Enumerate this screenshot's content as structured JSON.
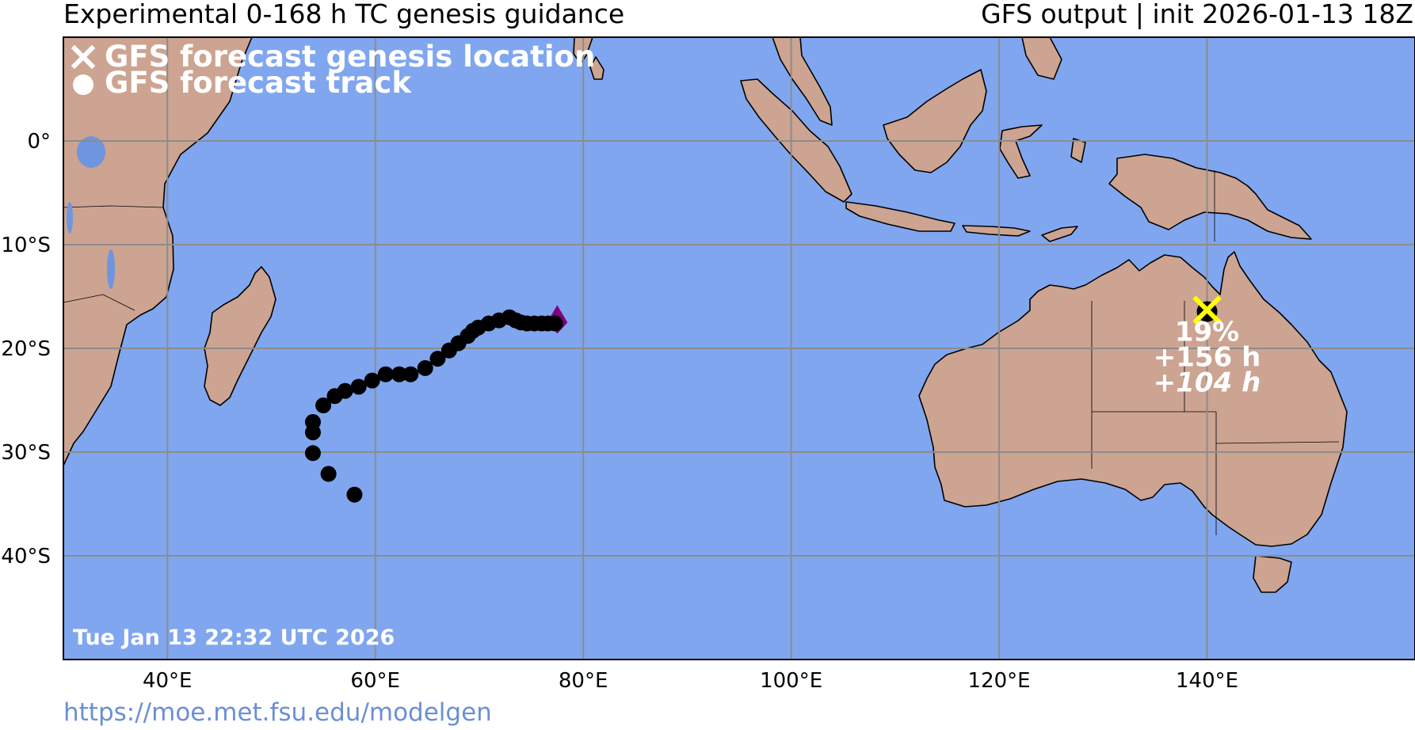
{
  "header": {
    "title_left": "Experimental 0-168 h TC genesis guidance",
    "title_right": "GFS output | init 2026-01-13 18Z"
  },
  "legend": {
    "genesis_label": "GFS forecast genesis location",
    "track_label": "GFS forecast track"
  },
  "timestamp": "Tue Jan 13 22:32 UTC 2026",
  "url": "https://moe.met.fsu.edu/modelgen",
  "colors": {
    "ocean": "#80a6ef",
    "land": "#cca491",
    "track": "#000000",
    "genesis_marker": "#ffff00",
    "start_marker": "#800080",
    "gridline": "#8c8c8c",
    "lake": "#6f95de"
  },
  "axes": {
    "lon_ticks": [
      {
        "value": 40,
        "label": "40°E"
      },
      {
        "value": 60,
        "label": "60°E"
      },
      {
        "value": 80,
        "label": "80°E"
      },
      {
        "value": 100,
        "label": "100°E"
      },
      {
        "value": 120,
        "label": "120°E"
      },
      {
        "value": 140,
        "label": "140°E"
      }
    ],
    "lat_ticks": [
      {
        "value": 0,
        "label": "0°"
      },
      {
        "value": -10,
        "label": "10°S"
      },
      {
        "value": -20,
        "label": "20°S"
      },
      {
        "value": -30,
        "label": "30°S"
      },
      {
        "value": -40,
        "label": "40°S"
      }
    ],
    "lon_range": [
      30,
      160
    ],
    "lat_range": [
      -50,
      10
    ]
  },
  "storms": [
    {
      "probability": "19%",
      "genesis_time": "+156 h",
      "lead_time": "104 h",
      "genesis": {
        "lon": 140.0,
        "lat": -16.3
      }
    }
  ],
  "tracks": [
    {
      "start": {
        "lon": 77.5,
        "lat": -17.2
      },
      "points": [
        [
          77.3,
          -17.6
        ],
        [
          76.6,
          -17.6
        ],
        [
          76.0,
          -17.6
        ],
        [
          75.3,
          -17.6
        ],
        [
          74.6,
          -17.6
        ],
        [
          74.0,
          -17.5
        ],
        [
          73.5,
          -17.3
        ],
        [
          72.9,
          -17.0
        ],
        [
          71.9,
          -17.3
        ],
        [
          70.9,
          -17.6
        ],
        [
          69.9,
          -18.0
        ],
        [
          69.4,
          -18.3
        ],
        [
          68.9,
          -18.8
        ],
        [
          68.0,
          -19.5
        ],
        [
          67.1,
          -20.2
        ],
        [
          66.0,
          -21.0
        ],
        [
          64.8,
          -21.9
        ],
        [
          63.4,
          -22.5
        ],
        [
          62.3,
          -22.5
        ],
        [
          61.0,
          -22.5
        ],
        [
          59.7,
          -23.1
        ],
        [
          58.4,
          -23.7
        ],
        [
          57.1,
          -24.1
        ],
        [
          56.1,
          -24.6
        ],
        [
          55.0,
          -25.5
        ],
        [
          54.0,
          -27.1
        ],
        [
          54.0,
          -28.1
        ],
        [
          54.0,
          -30.1
        ],
        [
          55.5,
          -32.1
        ],
        [
          58.0,
          -34.1
        ]
      ]
    }
  ]
}
